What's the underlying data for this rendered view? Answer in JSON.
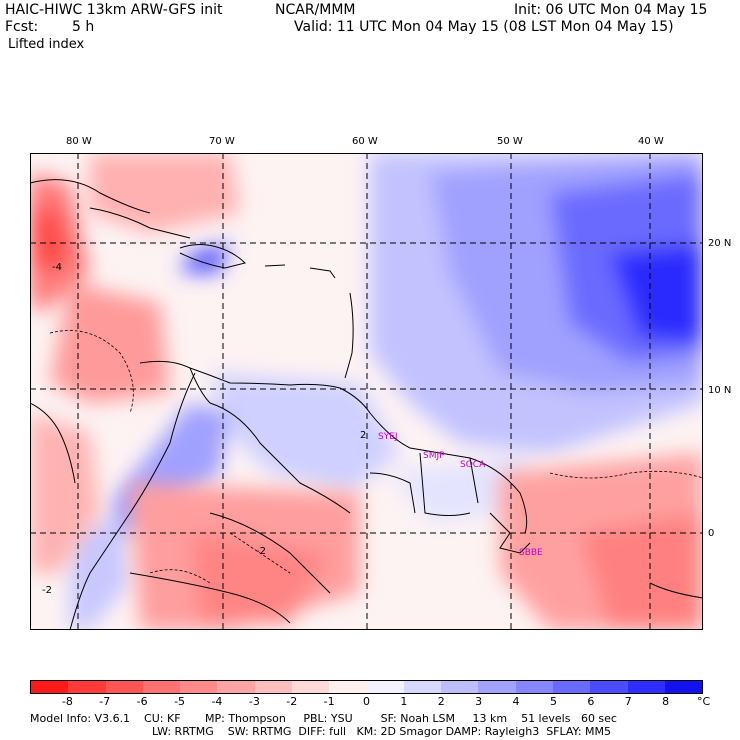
{
  "header": {
    "model": "HAIC-HIWC 13km ARW-GFS init",
    "center": "NCAR/MMM",
    "init": "Init: 06 UTC Mon 04 May 15",
    "fcst_label": "Fcst:",
    "fcst_value": "5 h",
    "valid": "Valid: 11 UTC Mon 04 May 15 (08 LST Mon 04 May 15)",
    "field": "Lifted index"
  },
  "map": {
    "lon_labels": [
      "80 W",
      "70 W",
      "60 W",
      "50 W",
      "40 W"
    ],
    "lat_labels": [
      "20 N",
      "10 N",
      "0"
    ],
    "stations": [
      "SYEJ",
      "SMJP",
      "SOCA",
      "SBBE"
    ],
    "contour_labels": [
      "-4",
      "-2",
      "-2",
      "2"
    ]
  },
  "colorbar": {
    "unit": "°C",
    "labels": [
      "-8",
      "-7",
      "-6",
      "-5",
      "-4",
      "-3",
      "-2",
      "-1",
      "0",
      "1",
      "2",
      "3",
      "4",
      "5",
      "6",
      "7",
      "8"
    ],
    "colors": [
      "#ff1a1a",
      "#ff3a3a",
      "#ff5555",
      "#ff7070",
      "#ff8a8a",
      "#ffa4a4",
      "#ffbebe",
      "#ffd8d8",
      "#fff0f0",
      "#f2f2ff",
      "#d8d8ff",
      "#bebeff",
      "#a2a2ff",
      "#8686ff",
      "#6a6aff",
      "#4c4cff",
      "#2e2eff",
      "#1212f0"
    ]
  },
  "footer": {
    "line1": "Model Info: V3.6.1    CU: KF       MP: Thompson     PBL: YSU        SF: Noah LSM     13 km    51 levels   60 sec",
    "line2": "LW: RRTMG    SW: RRTMG  DIFF: full   KM: 2D Smagor DAMP: Rayleigh3  SFLAY: MM5"
  }
}
